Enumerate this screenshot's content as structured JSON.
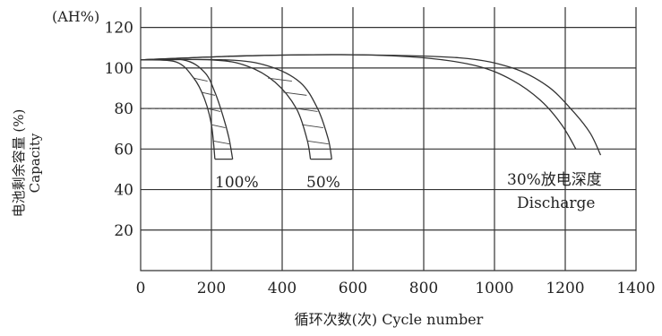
{
  "chart_data": {
    "type": "line",
    "unit_label": "(AH%)",
    "ylabel_cn": "电池剩余容量 (%)",
    "ylabel_en": "Capacity",
    "xlabel": "循环次数(次) Cycle number",
    "xlim": [
      0,
      1400
    ],
    "ylim": [
      0,
      130
    ],
    "x_ticks": [
      0,
      200,
      400,
      600,
      800,
      1000,
      1200,
      1400
    ],
    "y_ticks": [
      20,
      40,
      60,
      80,
      100,
      120
    ],
    "grid": true,
    "reference_line": {
      "y": 80,
      "style": "dashed"
    },
    "series": [
      {
        "name": "100%",
        "band": [
          {
            "x": [
              0,
              100,
              150,
              180,
              200,
              210
            ],
            "y": [
              104,
              103,
              95,
              85,
              72,
              55
            ]
          },
          {
            "x": [
              0,
              120,
              180,
              210,
              235,
              250,
              260
            ],
            "y": [
              104,
              104,
              98,
              88,
              75,
              65,
              55
            ]
          }
        ]
      },
      {
        "name": "50%",
        "band": [
          {
            "x": [
              0,
              200,
              300,
              380,
              440,
              470,
              480
            ],
            "y": [
              104,
              104,
              101,
              93,
              80,
              65,
              55
            ]
          },
          {
            "x": [
              0,
              240,
              360,
              450,
              500,
              530,
              540
            ],
            "y": [
              104,
              104,
              101,
              93,
              80,
              65,
              55
            ]
          }
        ]
      },
      {
        "name": "30%放电深度",
        "name2": "Discharge",
        "band": [
          {
            "x": [
              0,
              300,
              600,
              800,
              950,
              1050,
              1130,
              1190,
              1230
            ],
            "y": [
              104,
              106,
              106.5,
              105,
              101,
              94,
              84,
              72,
              60
            ]
          },
          {
            "x": [
              0,
              300,
              600,
              900,
              1050,
              1150,
              1220,
              1270,
              1300
            ],
            "y": [
              104,
              106,
              106.5,
              105,
              100,
              91,
              79,
              68,
              57
            ]
          }
        ]
      }
    ]
  }
}
